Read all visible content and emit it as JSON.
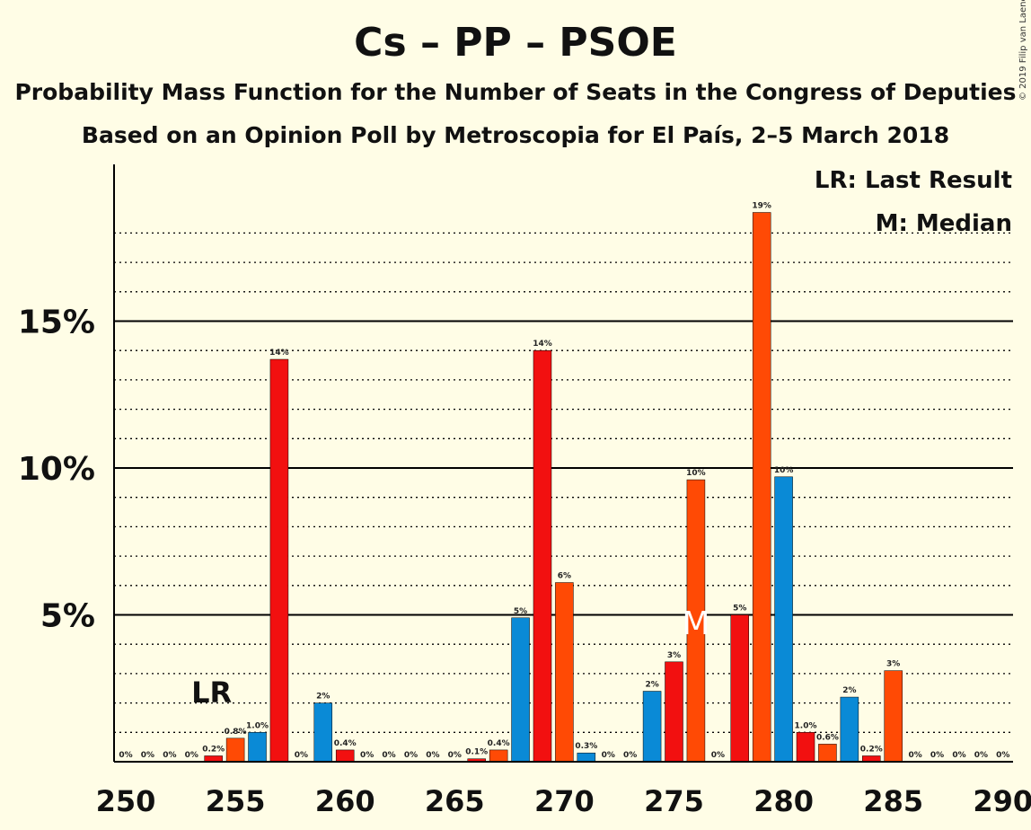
{
  "chart_data": {
    "type": "bar",
    "title": "Cs – PP – PSOE",
    "subtitle": "Probability Mass Function for the Number of Seats in the Congress of Deputies",
    "subtitle2": "Based on an Opinion Poll by Metroscopia for El País, 2–5 March 2018",
    "copyright": "© 2019 Filip van Laenen",
    "legend": [
      "LR: Last Result",
      "M: Median"
    ],
    "xlim": [
      250,
      290
    ],
    "ylim": [
      0,
      20
    ],
    "x_ticks": [
      250,
      255,
      260,
      265,
      270,
      275,
      280,
      285,
      290
    ],
    "y_ticks": [
      {
        "value": 5,
        "label": "5%"
      },
      {
        "value": 10,
        "label": "10%"
      },
      {
        "value": 15,
        "label": "15%"
      }
    ],
    "grid": "dotted at every 1%, solid at 5%",
    "last_result": {
      "x": 254,
      "label": "LR"
    },
    "median": {
      "x": 276,
      "label": "M"
    },
    "colors": {
      "blue": "#0a8ad6",
      "red": "#f21010",
      "orange": "#ff4a05"
    },
    "bars": [
      {
        "x": 250,
        "value": 0,
        "label": "0%",
        "color": "blue"
      },
      {
        "x": 251,
        "value": 0,
        "label": "0%",
        "color": "red"
      },
      {
        "x": 252,
        "value": 0,
        "label": "0%",
        "color": "orange"
      },
      {
        "x": 253,
        "value": 0,
        "label": "0%",
        "color": "blue"
      },
      {
        "x": 254,
        "value": 0.2,
        "label": "0.2%",
        "color": "red"
      },
      {
        "x": 255,
        "value": 0.8,
        "label": "0.8%",
        "color": "orange"
      },
      {
        "x": 256,
        "value": 1.0,
        "label": "1.0%",
        "color": "blue"
      },
      {
        "x": 257,
        "value": 13.7,
        "label": "14%",
        "color": "red"
      },
      {
        "x": 258,
        "value": 0,
        "label": "0%",
        "color": "orange"
      },
      {
        "x": 259,
        "value": 2.0,
        "label": "2%",
        "color": "blue"
      },
      {
        "x": 260,
        "value": 0.4,
        "label": "0.4%",
        "color": "red"
      },
      {
        "x": 261,
        "value": 0,
        "label": "0%",
        "color": "orange"
      },
      {
        "x": 262,
        "value": 0,
        "label": "0%",
        "color": "blue"
      },
      {
        "x": 263,
        "value": 0,
        "label": "0%",
        "color": "red"
      },
      {
        "x": 264,
        "value": 0,
        "label": "0%",
        "color": "orange"
      },
      {
        "x": 265,
        "value": 0,
        "label": "0%",
        "color": "blue"
      },
      {
        "x": 266,
        "value": 0.1,
        "label": "0.1%",
        "color": "red"
      },
      {
        "x": 267,
        "value": 0.4,
        "label": "0.4%",
        "color": "orange"
      },
      {
        "x": 268,
        "value": 4.9,
        "label": "5%",
        "color": "blue"
      },
      {
        "x": 269,
        "value": 14.0,
        "label": "14%",
        "color": "red"
      },
      {
        "x": 270,
        "value": 6.1,
        "label": "6%",
        "color": "orange"
      },
      {
        "x": 271,
        "value": 0.3,
        "label": "0.3%",
        "color": "blue"
      },
      {
        "x": 272,
        "value": 0,
        "label": "0%",
        "color": "red"
      },
      {
        "x": 273,
        "value": 0,
        "label": "0%",
        "color": "orange"
      },
      {
        "x": 274,
        "value": 2.4,
        "label": "2%",
        "color": "blue"
      },
      {
        "x": 275,
        "value": 3.4,
        "label": "3%",
        "color": "red"
      },
      {
        "x": 276,
        "value": 9.6,
        "label": "10%",
        "color": "orange"
      },
      {
        "x": 277,
        "value": 0,
        "label": "0%",
        "color": "blue"
      },
      {
        "x": 278,
        "value": 5.0,
        "label": "5%",
        "color": "red"
      },
      {
        "x": 279,
        "value": 18.7,
        "label": "19%",
        "color": "orange"
      },
      {
        "x": 280,
        "value": 9.7,
        "label": "10%",
        "color": "blue"
      },
      {
        "x": 281,
        "value": 1.0,
        "label": "1.0%",
        "color": "red"
      },
      {
        "x": 282,
        "value": 0.6,
        "label": "0.6%",
        "color": "orange"
      },
      {
        "x": 283,
        "value": 2.2,
        "label": "2%",
        "color": "blue"
      },
      {
        "x": 284,
        "value": 0.2,
        "label": "0.2%",
        "color": "red"
      },
      {
        "x": 285,
        "value": 3.1,
        "label": "3%",
        "color": "orange"
      },
      {
        "x": 286,
        "value": 0,
        "label": "0%",
        "color": "blue"
      },
      {
        "x": 287,
        "value": 0,
        "label": "0%",
        "color": "red"
      },
      {
        "x": 288,
        "value": 0,
        "label": "0%",
        "color": "orange"
      },
      {
        "x": 289,
        "value": 0,
        "label": "0%",
        "color": "blue"
      },
      {
        "x": 290,
        "value": 0,
        "label": "0%",
        "color": "red"
      }
    ]
  }
}
